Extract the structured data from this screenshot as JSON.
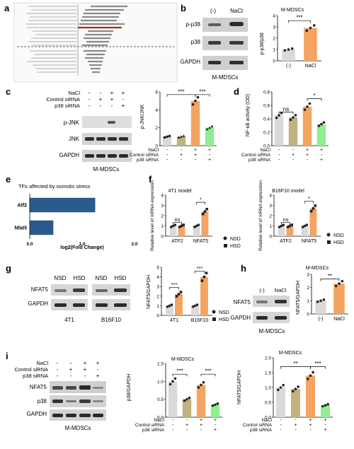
{
  "panels": {
    "a": {
      "letter": "a"
    },
    "b": {
      "letter": "b",
      "lanes": [
        "(-)",
        "NaCl"
      ],
      "blots": [
        "p-p38",
        "p38",
        "GAPDH"
      ],
      "caption": "M-MDSCs",
      "plot_title": "M-MDSCs",
      "ylabel": "p-p38/p38",
      "sig": "***"
    },
    "c": {
      "letter": "c",
      "rows": [
        "NaCl",
        "Control siRNA",
        "p38 siRNA"
      ],
      "blots": [
        "p-JNK",
        "JNK",
        "GAPDH"
      ],
      "caption": "M-MDSCs",
      "ylabel": "p-JNK/JNK",
      "sig1": "***",
      "sig2": "***"
    },
    "d": {
      "letter": "d",
      "ylabel": "NF-κB activity (OD)",
      "sig_ns": "ns",
      "sig_star": "*"
    },
    "e": {
      "letter": "e",
      "title": "TFs affected by osmotis stress",
      "xlabel": "log2(Fold Change)",
      "labels": [
        "Atf2",
        "Nfat5"
      ],
      "ticks": [
        "0.0",
        "1.0",
        "2.0"
      ]
    },
    "f": {
      "letter": "f",
      "left_title": "4T1 model",
      "right_title": "B16F10 model",
      "ylabel": "Relative level of mRNA expression",
      "cats": [
        "ATF2",
        "NFAT5"
      ],
      "legend": [
        "NSD",
        "HSD"
      ],
      "sig_ns": "ns",
      "sig_star": "*"
    },
    "g": {
      "letter": "g",
      "lanes": [
        "NSD",
        "HSD",
        "NSD",
        "HSD"
      ],
      "blots": [
        "NFAT5",
        "GAPDH"
      ],
      "groups": [
        "4T1",
        "B16F10"
      ],
      "ylabel": "NFAT5/GAPDH",
      "cats": [
        "4T1",
        "B16F10"
      ],
      "legend": [
        "NSD",
        "HSD"
      ],
      "sig": "***"
    },
    "h": {
      "letter": "h",
      "lanes": [
        "(-)",
        "NaCl"
      ],
      "blots": [
        "NFAT5",
        "GAPDH"
      ],
      "caption": "M-MDSCs",
      "plot_title": "M-MDSCs",
      "ylabel": "NFAT5/GAPDH",
      "cats": [
        "(-)",
        "NaCl"
      ],
      "sig": "**"
    },
    "i": {
      "letter": "i",
      "rows": [
        "NaCl",
        "Control siRNA",
        "p38 siRNA"
      ],
      "blots": [
        "NFAT5",
        "p38",
        "GAPDH"
      ],
      "caption": "M-MDSCs",
      "mid_title": "M-MDSCs",
      "mid_ylabel": "p38/GAPDH",
      "right_title": "M-MDSCs",
      "right_ylabel": "NFAT5/GAPDH",
      "sig1": "***",
      "sig2": "***",
      "sig3": "**",
      "sig4": "***"
    }
  },
  "signs": {
    "minus": "-",
    "plus": "+"
  },
  "chart_data": [
    {
      "panel": "b",
      "type": "bar",
      "categories": [
        "(-)",
        "NaCl"
      ],
      "values": [
        1.0,
        2.9
      ],
      "ylim": [
        0,
        4
      ],
      "ticks": [
        0,
        1,
        2,
        3,
        4
      ],
      "colors": [
        "#d9d9d9",
        "#f4a460"
      ]
    },
    {
      "panel": "c",
      "type": "bar",
      "categories": [
        "1",
        "2",
        "3",
        "4"
      ],
      "values": [
        1.0,
        1.0,
        5.0,
        2.0
      ],
      "ylim": [
        0,
        6
      ],
      "ticks": [
        0,
        2,
        4,
        6
      ],
      "colors": [
        "#d9d9d9",
        "#c2b280",
        "#f4a460",
        "#90ee90"
      ]
    },
    {
      "panel": "d",
      "type": "bar",
      "categories": [
        "1",
        "2",
        "3",
        "4"
      ],
      "values": [
        0.45,
        0.42,
        0.58,
        0.32
      ],
      "ylim": [
        0,
        0.8
      ],
      "ticks": [
        0.0,
        0.2,
        0.4,
        0.6,
        0.8
      ],
      "colors": [
        "#d9d9d9",
        "#c2b280",
        "#f4a460",
        "#90ee90"
      ]
    },
    {
      "panel": "e",
      "type": "bar",
      "categories": [
        "Atf2",
        "Nfat5"
      ],
      "values": [
        1.25,
        0.45
      ],
      "xlim": [
        0,
        2
      ],
      "colors": [
        "#2b5a8c",
        "#2b5a8c"
      ]
    },
    {
      "panel": "f-4T1",
      "type": "bar",
      "categories": [
        "ATF2",
        "NFAT5"
      ],
      "series": [
        {
          "name": "NSD",
          "values": [
            1.0,
            1.0
          ]
        },
        {
          "name": "HSD",
          "values": [
            1.0,
            2.4
          ]
        }
      ],
      "ylim": [
        0,
        4
      ],
      "ticks": [
        0,
        1,
        2,
        3,
        4
      ],
      "colors": [
        "#d9d9d9",
        "#f4a460"
      ]
    },
    {
      "panel": "f-B16F10",
      "type": "bar",
      "categories": [
        "ATF2",
        "NFAT5"
      ],
      "series": [
        {
          "name": "NSD",
          "values": [
            1.0,
            1.0
          ]
        },
        {
          "name": "HSD",
          "values": [
            1.0,
            2.7
          ]
        }
      ],
      "ylim": [
        0,
        4
      ],
      "ticks": [
        0,
        1,
        2,
        3,
        4
      ],
      "colors": [
        "#d9d9d9",
        "#f4a460"
      ]
    },
    {
      "panel": "g",
      "type": "bar",
      "categories": [
        "4T1",
        "B16F10"
      ],
      "series": [
        {
          "name": "NSD",
          "values": [
            1.0,
            1.0
          ]
        },
        {
          "name": "HSD",
          "values": [
            2.2,
            4.0
          ]
        }
      ],
      "ylim": [
        0,
        5
      ],
      "ticks": [
        0,
        1,
        2,
        3,
        4,
        5
      ],
      "colors": [
        "#d9d9d9",
        "#f4a460"
      ]
    },
    {
      "panel": "h",
      "type": "bar",
      "categories": [
        "(-)",
        "NaCl"
      ],
      "values": [
        1.0,
        2.3
      ],
      "ylim": [
        0,
        3
      ],
      "ticks": [
        0,
        1,
        2,
        3
      ],
      "colors": [
        "#d9d9d9",
        "#f4a460"
      ]
    },
    {
      "panel": "i-p38",
      "type": "bar",
      "categories": [
        "1",
        "2",
        "3",
        "4"
      ],
      "values": [
        1.0,
        0.5,
        0.9,
        0.35
      ],
      "ylim": [
        0,
        1.5
      ],
      "ticks": [
        0.0,
        0.5,
        1.0,
        1.5
      ],
      "colors": [
        "#d9d9d9",
        "#c2b280",
        "#f4a460",
        "#90ee90"
      ]
    },
    {
      "panel": "i-NFAT5",
      "type": "bar",
      "categories": [
        "1",
        "2",
        "3",
        "4"
      ],
      "values": [
        1.0,
        0.95,
        1.4,
        0.4
      ],
      "ylim": [
        0,
        2
      ],
      "ticks": [
        0.0,
        0.5,
        1.0,
        1.5,
        2.0
      ],
      "colors": [
        "#d9d9d9",
        "#c2b280",
        "#f4a460",
        "#90ee90"
      ]
    }
  ]
}
